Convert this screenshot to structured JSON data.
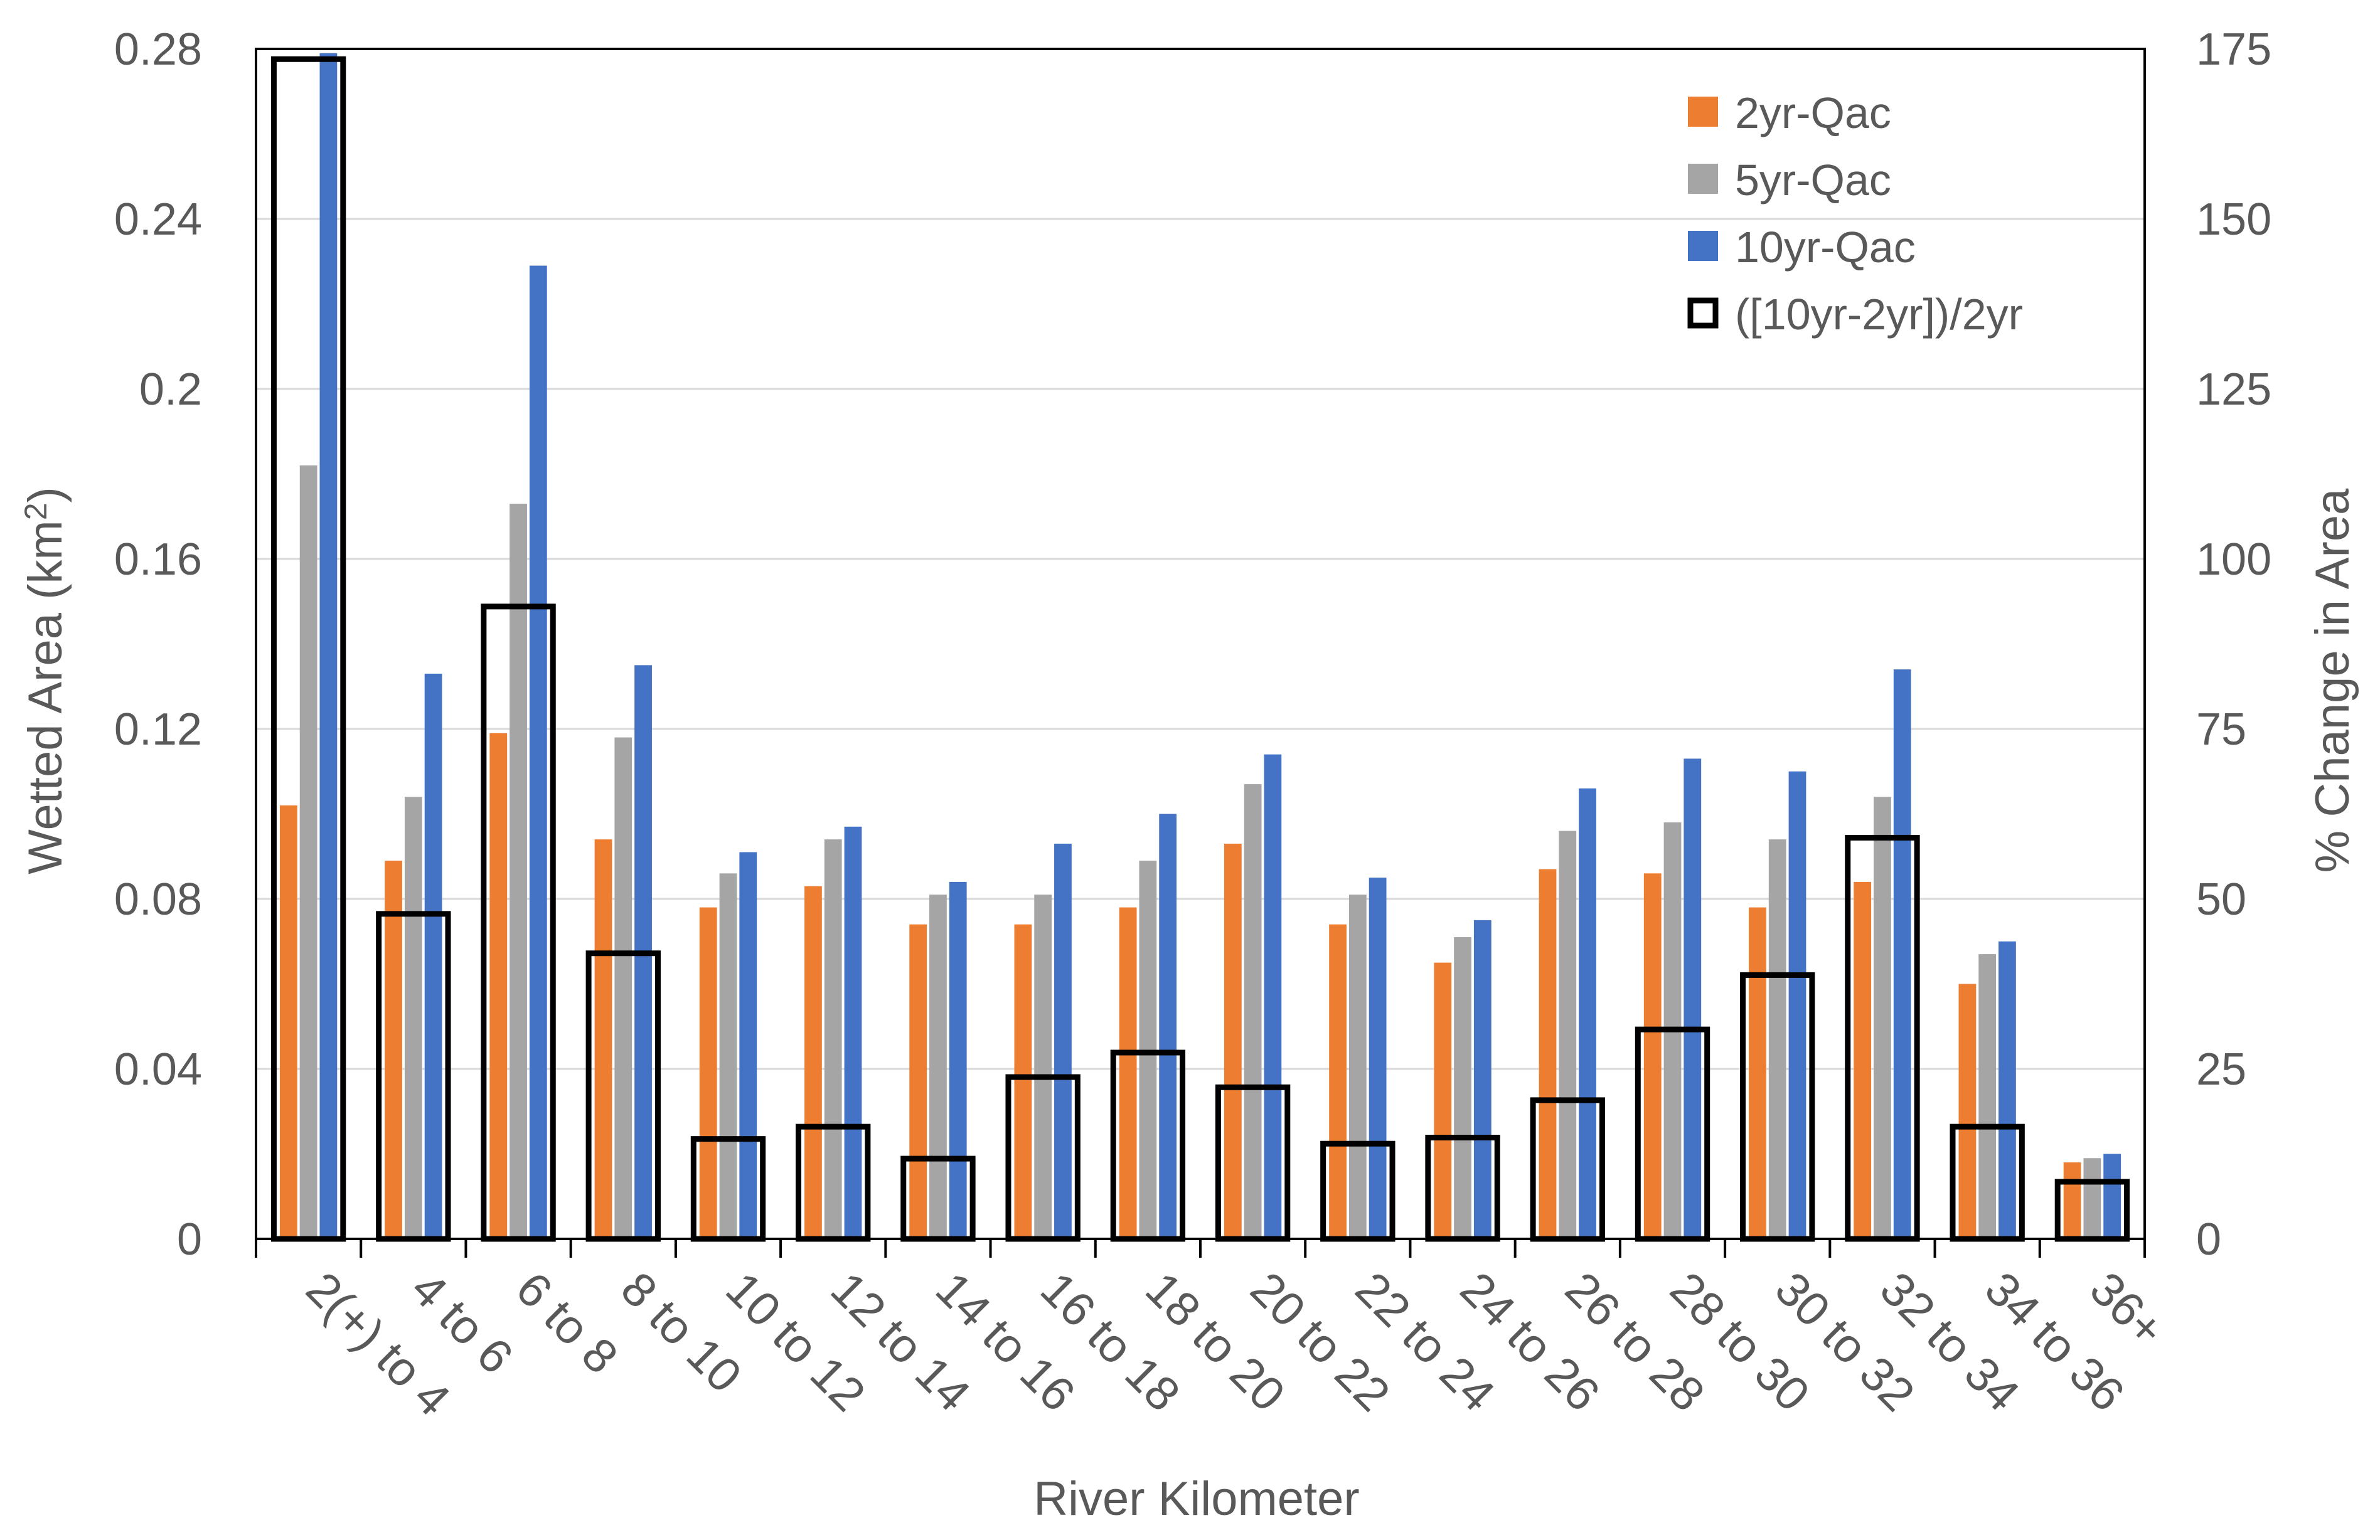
{
  "chart_data": {
    "type": "bar",
    "title": "",
    "xlabel": "River Kilometer",
    "ylabel": "Wetted Area (km²)",
    "ylabel_parts": {
      "main": "Wetted Area (km",
      "sup": "2",
      "tail": ")"
    },
    "y2label": "% Change in Area",
    "ylim": [
      0,
      0.28
    ],
    "y2lim": [
      0,
      175
    ],
    "yticks": [
      "0",
      "0.04",
      "0.08",
      "0.12",
      "0.16",
      "0.2",
      "0.24",
      "0.28"
    ],
    "y2ticks": [
      "0",
      "25",
      "50",
      "75",
      "100",
      "125",
      "150",
      "175"
    ],
    "categories": [
      "2(+) to 4",
      "4 to 6",
      "6 to 8",
      "8 to 10",
      "10 to 12",
      "12 to 14",
      "14 to 16",
      "16 to 18",
      "18 to 20",
      "20 to 22",
      "22 to 24",
      "24 to 26",
      "26 to 28",
      "28 to 30",
      "30 to 32",
      "32 to 34",
      "34 to 36",
      "36+"
    ],
    "series": [
      {
        "name": "2yr-Qac",
        "color": "#ED7D31",
        "axis": "left",
        "style": "filled",
        "values": [
          0.102,
          0.089,
          0.119,
          0.094,
          0.078,
          0.083,
          0.074,
          0.074,
          0.078,
          0.093,
          0.074,
          0.065,
          0.087,
          0.086,
          0.078,
          0.084,
          0.06,
          0.018
        ]
      },
      {
        "name": "5yr-Qac",
        "color": "#A5A5A5",
        "axis": "left",
        "style": "filled",
        "values": [
          0.182,
          0.104,
          0.173,
          0.118,
          0.086,
          0.094,
          0.081,
          0.081,
          0.089,
          0.107,
          0.081,
          0.071,
          0.096,
          0.098,
          0.094,
          0.104,
          0.067,
          0.019
        ]
      },
      {
        "name": "10yr-Qac",
        "color": "#4472C4",
        "axis": "left",
        "style": "filled",
        "values": [
          0.279,
          0.133,
          0.229,
          0.135,
          0.091,
          0.097,
          0.084,
          0.093,
          0.1,
          0.114,
          0.085,
          0.075,
          0.106,
          0.113,
          0.11,
          0.134,
          0.07,
          0.02
        ]
      },
      {
        "name": "([10yr-2yr])/2yr",
        "color": "#000000",
        "axis": "right",
        "style": "outline",
        "values": [
          173.5,
          47.8,
          93,
          42,
          14.7,
          16.5,
          11.8,
          23.8,
          27.4,
          22.3,
          14,
          14.9,
          20.4,
          30.8,
          38.8,
          59,
          16.5,
          8.4
        ]
      }
    ],
    "gridlines": true,
    "legend_position": "top-right"
  }
}
